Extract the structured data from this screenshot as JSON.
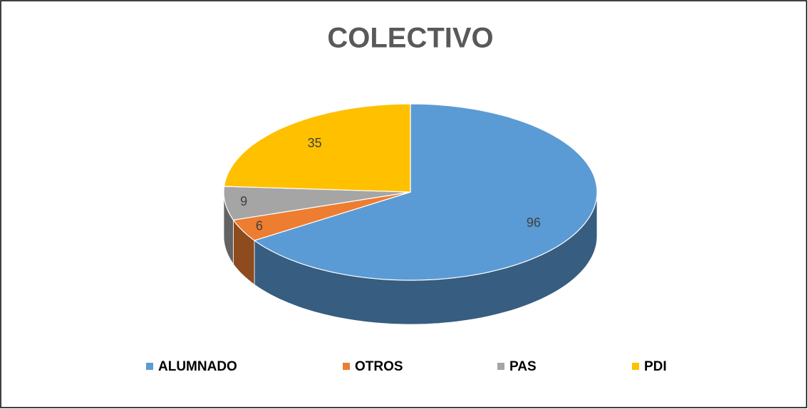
{
  "chart_data": {
    "type": "pie",
    "title": "COLECTIVO",
    "categories": [
      "ALUMNADO",
      "OTROS",
      "PAS",
      "PDI"
    ],
    "values": [
      96,
      6,
      9,
      35
    ],
    "colors": [
      "#5b9bd5",
      "#ed7d31",
      "#a5a5a5",
      "#ffc000"
    ],
    "legend": "bottom"
  }
}
